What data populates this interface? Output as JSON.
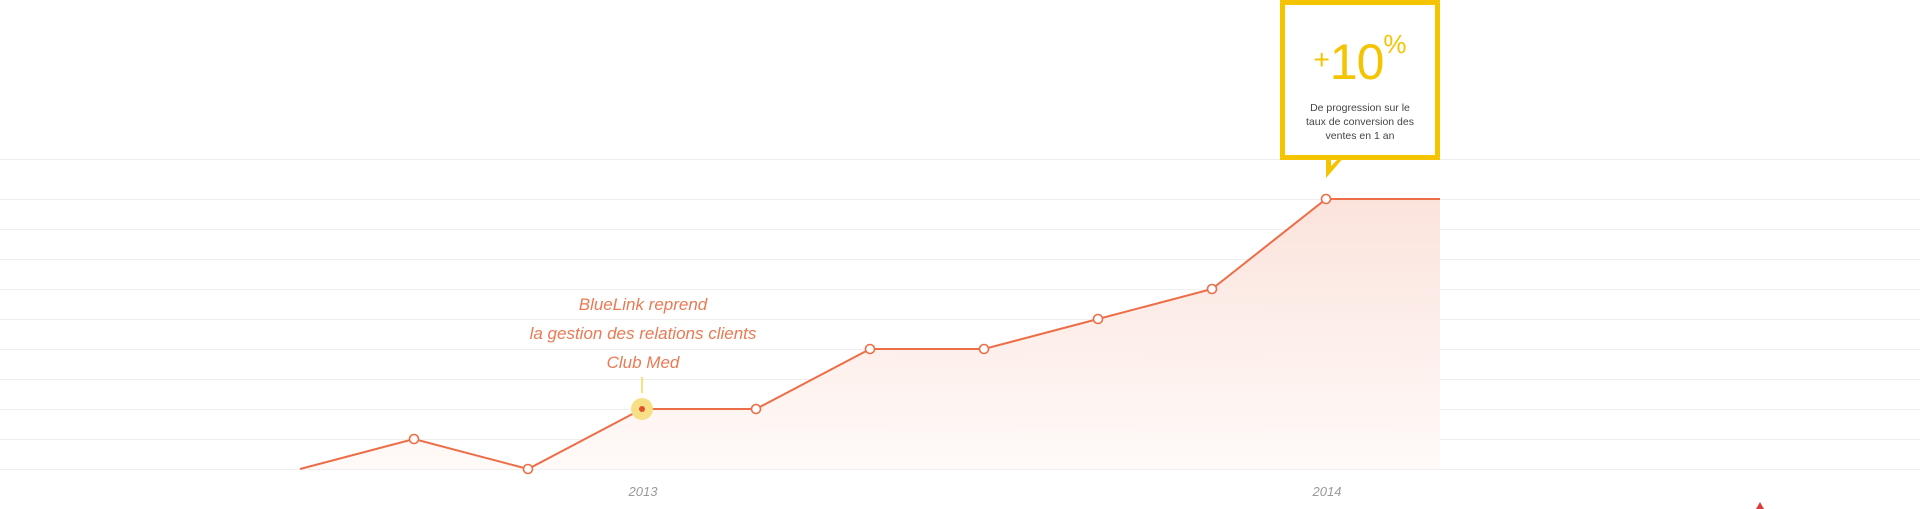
{
  "chart_data": {
    "type": "area",
    "title": "",
    "xlabel": "",
    "ylabel": "",
    "x_tick_labels": [
      {
        "index": 3,
        "label": "2013"
      },
      {
        "index": 9,
        "label": "2014"
      }
    ],
    "series": [
      {
        "values": [
          0,
          1,
          0,
          2,
          2,
          4,
          4,
          5,
          6,
          9,
          9
        ],
        "marker_indices": [
          1,
          2,
          3,
          4,
          5,
          6,
          7,
          8,
          9
        ],
        "highlight_index": 3
      }
    ],
    "ylim": [
      0,
      10
    ],
    "grid": true,
    "annotation": {
      "index": 3,
      "lines": [
        "BlueLink reprend",
        "la gestion des relations clients",
        "Club Med"
      ]
    },
    "callout": {
      "index": 9,
      "sign": "+",
      "value": "10",
      "unit": "%",
      "text": "De progression sur le taux de conversion des ventes en 1 an"
    }
  },
  "colors": {
    "line": "#ed6d47",
    "marker_fill": "#ffffff",
    "highlight_halo": "#f7df85",
    "highlight_dot": "#e4502c",
    "area_top": "#fbe3dc",
    "area_bottom": "#fffaf8",
    "grid": "#efefef",
    "callout_border": "#f5c400",
    "callout_text": "#444444",
    "annotation_text": "#e97a54",
    "tick_text": "#9a9a9a",
    "corner_mark": "#e23b3b"
  }
}
